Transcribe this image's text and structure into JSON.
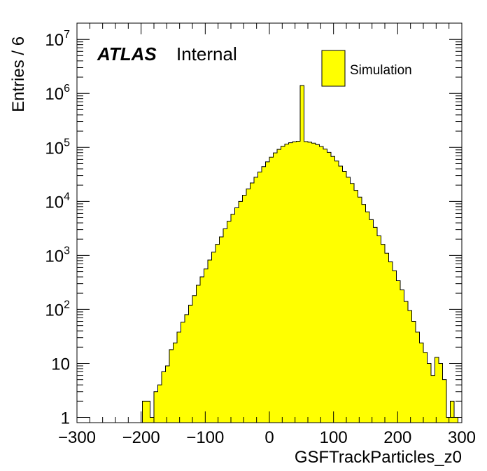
{
  "chart_data": {
    "type": "bar",
    "histogram": true,
    "xlabel": "GSFTrackParticles_z0",
    "ylabel": "Entries / 6",
    "xlim": [
      -300,
      300
    ],
    "ylim": [
      0.8,
      20000000
    ],
    "yscale": "log",
    "grid": false,
    "legend_position": "top-right",
    "x_ticks": [
      {
        "value": -300,
        "label": "−300"
      },
      {
        "value": -200,
        "label": "−200"
      },
      {
        "value": -100,
        "label": "−100"
      },
      {
        "value": 0,
        "label": "0"
      },
      {
        "value": 100,
        "label": "100"
      },
      {
        "value": 200,
        "label": "200"
      },
      {
        "value": 300,
        "label": "300"
      }
    ],
    "y_ticks": [
      {
        "value": 1,
        "base": "1",
        "exp": ""
      },
      {
        "value": 10,
        "base": "10",
        "exp": ""
      },
      {
        "value": 100,
        "base": "10",
        "exp": "2"
      },
      {
        "value": 1000,
        "base": "10",
        "exp": "3"
      },
      {
        "value": 10000,
        "base": "10",
        "exp": "4"
      },
      {
        "value": 100000,
        "base": "10",
        "exp": "5"
      },
      {
        "value": 1000000,
        "base": "10",
        "exp": "6"
      },
      {
        "value": 10000000,
        "base": "10",
        "exp": "7"
      }
    ],
    "bin_width": 6,
    "bin_edges_start": -198,
    "series": [
      {
        "name": "Simulation",
        "color": "#ffff00",
        "edge_color": "#000000",
        "values": [
          2,
          2,
          1,
          3,
          4,
          7,
          9,
          18,
          24,
          38,
          58,
          80,
          120,
          180,
          280,
          400,
          560,
          820,
          1150,
          1600,
          2200,
          3100,
          4300,
          5800,
          7600,
          10000,
          13000,
          17000,
          22000,
          28000,
          35000,
          44000,
          54000,
          66000,
          79000,
          92000,
          105000,
          115000,
          122000,
          127000,
          130000,
          1400000,
          128000,
          125000,
          120000,
          113000,
          104000,
          93000,
          81000,
          68000,
          56000,
          45000,
          36000,
          28000,
          21500,
          16000,
          12000,
          8800,
          6400,
          4600,
          3300,
          2300,
          1600,
          1100,
          760,
          520,
          340,
          230,
          140,
          95,
          60,
          38,
          24,
          16,
          10,
          6,
          13,
          10,
          5,
          1,
          2,
          1
        ]
      }
    ],
    "annotations": {
      "experiment": "ATLAS",
      "status": "Internal"
    }
  }
}
